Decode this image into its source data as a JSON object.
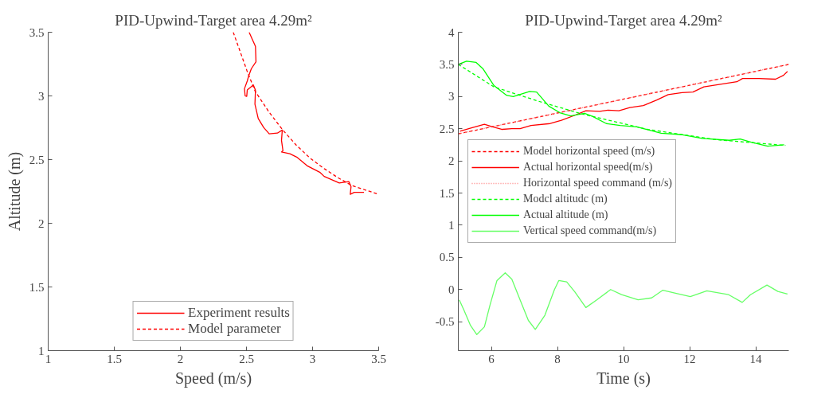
{
  "chart_data": [
    {
      "type": "line",
      "title": "PID-Upwind-Target area 4.29m²",
      "xlabel": "Speed (m/s)",
      "ylabel": "Altitude (m)",
      "xlim": [
        1,
        3.5
      ],
      "ylim": [
        1,
        3.5
      ],
      "xticks": [
        1,
        1.5,
        2,
        2.5,
        3,
        3.5
      ],
      "yticks": [
        1,
        1.5,
        2,
        2.5,
        3,
        3.5
      ],
      "grid": false,
      "legend": "bottom",
      "series": [
        {
          "name": "Experiment results",
          "color": "#ff0000",
          "line_style": "solid",
          "x": [
            2.52,
            2.568,
            2.572,
            2.537,
            2.517,
            2.506,
            2.485,
            2.49,
            2.502,
            2.506,
            2.552,
            2.568,
            2.564,
            2.589,
            2.63,
            2.672,
            2.734,
            2.771,
            2.765,
            2.776,
            2.765,
            2.828,
            2.88,
            2.963,
            3.057,
            3.088,
            3.202,
            3.275,
            3.291,
            3.285,
            3.316,
            3.389
          ],
          "values": [
            3.5,
            3.389,
            3.268,
            3.214,
            3.158,
            3.117,
            3.057,
            3.0,
            2.996,
            3.047,
            3.086,
            3.046,
            2.935,
            2.823,
            2.752,
            2.702,
            2.708,
            2.732,
            2.651,
            2.57,
            2.56,
            2.546,
            2.52,
            2.449,
            2.399,
            2.368,
            2.317,
            2.327,
            2.287,
            2.227,
            2.243,
            2.243
          ]
        },
        {
          "name": "Model parameter",
          "color": "#ff0000",
          "line_style": "dashed",
          "x": [
            2.4,
            2.504,
            2.566,
            2.67,
            2.775,
            2.879,
            2.983,
            3.088,
            3.192,
            3.296,
            3.5
          ],
          "values": [
            3.5,
            3.197,
            3.036,
            2.874,
            2.732,
            2.611,
            2.51,
            2.429,
            2.358,
            2.297,
            2.227
          ]
        }
      ]
    },
    {
      "type": "line",
      "title": "PID-Upwind-Target area 4.29m²",
      "xlabel": "Time (s)",
      "xlim": [
        5,
        15
      ],
      "ylim": [
        -0.95,
        4
      ],
      "xticks": [
        6,
        8,
        10,
        12,
        14
      ],
      "yticks": [
        -0.5,
        0,
        0.5,
        1,
        1.5,
        2,
        2.5,
        3,
        3.5,
        4
      ],
      "grid": false,
      "legend": "left",
      "series": [
        {
          "name": "Model horizontal speed (m/s)",
          "color": "#ff0000",
          "line_style": "dashed",
          "x": [
            5,
            15
          ],
          "values": [
            2.42,
            3.5
          ]
        },
        {
          "name": "Actual horizontal speed(m/s)",
          "color": "#ff0000",
          "line_style": "solid",
          "x": [
            5.05,
            5.38,
            5.79,
            6.04,
            6.33,
            6.62,
            6.87,
            7.2,
            7.78,
            8.12,
            8.53,
            8.86,
            9.28,
            9.53,
            9.86,
            10.19,
            10.6,
            11.02,
            11.35,
            11.77,
            12.1,
            12.43,
            12.93,
            13.43,
            13.6,
            14.1,
            14.6,
            14.84,
            14.96
          ],
          "values": [
            2.46,
            2.51,
            2.57,
            2.53,
            2.49,
            2.5,
            2.5,
            2.55,
            2.58,
            2.63,
            2.71,
            2.78,
            2.77,
            2.79,
            2.78,
            2.83,
            2.86,
            2.95,
            3.03,
            3.06,
            3.07,
            3.15,
            3.19,
            3.23,
            3.28,
            3.28,
            3.27,
            3.33,
            3.39
          ]
        },
        {
          "name": "Horizontal speed command (m/s)",
          "color": "#ff8080",
          "line_style": "dotted",
          "x": [
            5,
            15
          ],
          "values": [
            2.42,
            3.5
          ]
        },
        {
          "name": "Modcl altitudc (m)",
          "color": "#00ff00",
          "line_style": "dashed",
          "x": [
            5,
            6.08,
            7.41,
            8.74,
            10.73,
            12.8,
            14.9
          ],
          "values": [
            3.5,
            3.15,
            2.93,
            2.73,
            2.49,
            2.33,
            2.24
          ]
        },
        {
          "name": "Actual altitude (m)",
          "color": "#00ff00",
          "line_style": "solid",
          "x": [
            5,
            5.25,
            5.54,
            5.75,
            6.08,
            6.46,
            6.66,
            7.16,
            7.37,
            7.74,
            8.07,
            8.4,
            8.82,
            9.07,
            9.48,
            9.9,
            10.4,
            11.14,
            11.72,
            12.38,
            13.2,
            13.53,
            13.86,
            14.36,
            14.86
          ],
          "values": [
            3.5,
            3.55,
            3.53,
            3.43,
            3.17,
            3.02,
            3.0,
            3.08,
            3.07,
            2.85,
            2.75,
            2.7,
            2.74,
            2.69,
            2.58,
            2.55,
            2.53,
            2.43,
            2.41,
            2.35,
            2.32,
            2.34,
            2.29,
            2.23,
            2.25
          ]
        },
        {
          "name": "Vertical speed command(m/s)",
          "color": "#66ff66",
          "line_style": "solid",
          "x": [
            5.03,
            5.17,
            5.37,
            5.56,
            5.79,
            5.96,
            6.17,
            6.42,
            6.62,
            6.87,
            7.12,
            7.33,
            7.62,
            7.91,
            8.04,
            8.28,
            8.53,
            8.86,
            9.19,
            9.61,
            9.94,
            10.44,
            10.85,
            11.19,
            11.6,
            12.02,
            12.52,
            13.18,
            13.59,
            13.84,
            14.34,
            14.67,
            14.96
          ],
          "values": [
            -0.16,
            -0.32,
            -0.56,
            -0.7,
            -0.58,
            -0.24,
            0.14,
            0.26,
            0.16,
            -0.16,
            -0.48,
            -0.62,
            -0.4,
            0.0,
            0.14,
            0.12,
            -0.04,
            -0.28,
            -0.16,
            0.0,
            -0.08,
            -0.16,
            -0.13,
            -0.01,
            -0.06,
            -0.11,
            -0.02,
            -0.08,
            -0.2,
            -0.08,
            0.07,
            -0.03,
            -0.07
          ]
        }
      ]
    }
  ]
}
